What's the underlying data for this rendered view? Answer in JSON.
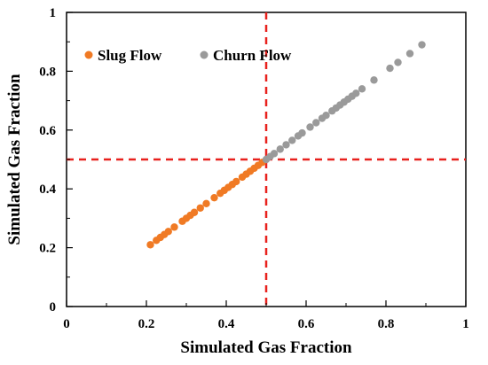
{
  "chart_data": {
    "type": "scatter",
    "xlabel": "Simulated Gas Fraction",
    "ylabel": "Simulated Gas Fraction",
    "xlim": [
      0,
      1
    ],
    "ylim": [
      0,
      1
    ],
    "x_ticks": [
      "0",
      "0.2",
      "0.4",
      "0.6",
      "0.8",
      "1"
    ],
    "y_ticks": [
      "0",
      "0.2",
      "0.4",
      "0.6",
      "0.8",
      "1"
    ],
    "grid": false,
    "legend_position": "top-left",
    "reference_lines": [
      {
        "orientation": "vertical",
        "value": 0.5,
        "color": "#e8211d",
        "style": "dashed"
      },
      {
        "orientation": "horizontal",
        "value": 0.5,
        "color": "#e8211d",
        "style": "dashed"
      }
    ],
    "series": [
      {
        "name": "Slug Flow",
        "color": "#f07a24",
        "points": [
          [
            0.21,
            0.21
          ],
          [
            0.225,
            0.225
          ],
          [
            0.235,
            0.235
          ],
          [
            0.245,
            0.245
          ],
          [
            0.255,
            0.255
          ],
          [
            0.27,
            0.27
          ],
          [
            0.29,
            0.29
          ],
          [
            0.3,
            0.3
          ],
          [
            0.31,
            0.31
          ],
          [
            0.32,
            0.32
          ],
          [
            0.335,
            0.335
          ],
          [
            0.35,
            0.35
          ],
          [
            0.37,
            0.37
          ],
          [
            0.385,
            0.385
          ],
          [
            0.395,
            0.395
          ],
          [
            0.405,
            0.405
          ],
          [
            0.415,
            0.415
          ],
          [
            0.425,
            0.425
          ],
          [
            0.44,
            0.44
          ],
          [
            0.45,
            0.45
          ],
          [
            0.46,
            0.46
          ],
          [
            0.47,
            0.47
          ],
          [
            0.48,
            0.48
          ],
          [
            0.49,
            0.49
          ]
        ]
      },
      {
        "name": "Churn Flow",
        "color": "#9a9a9a",
        "points": [
          [
            0.5,
            0.5
          ],
          [
            0.51,
            0.51
          ],
          [
            0.52,
            0.52
          ],
          [
            0.535,
            0.535
          ],
          [
            0.55,
            0.55
          ],
          [
            0.565,
            0.565
          ],
          [
            0.58,
            0.58
          ],
          [
            0.59,
            0.59
          ],
          [
            0.61,
            0.61
          ],
          [
            0.625,
            0.625
          ],
          [
            0.64,
            0.64
          ],
          [
            0.65,
            0.65
          ],
          [
            0.665,
            0.665
          ],
          [
            0.675,
            0.675
          ],
          [
            0.685,
            0.685
          ],
          [
            0.695,
            0.695
          ],
          [
            0.705,
            0.705
          ],
          [
            0.715,
            0.715
          ],
          [
            0.725,
            0.725
          ],
          [
            0.74,
            0.74
          ],
          [
            0.77,
            0.77
          ],
          [
            0.81,
            0.81
          ],
          [
            0.83,
            0.83
          ],
          [
            0.86,
            0.86
          ],
          [
            0.89,
            0.89
          ]
        ]
      }
    ]
  }
}
